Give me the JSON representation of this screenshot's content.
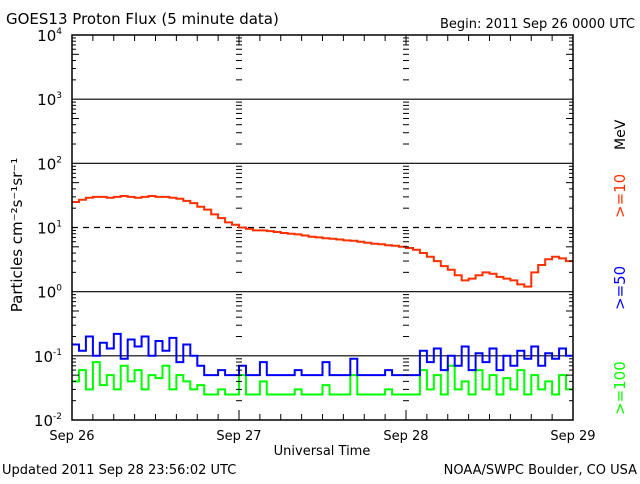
{
  "chart_data": {
    "type": "line",
    "title": "GOES13 Proton Flux (5 minute data)",
    "begin_label": "Begin: 2011 Sep 26 0000 UTC",
    "xlabel": "Universal Time",
    "ylabel": "Particles cm⁻²s⁻¹sr⁻¹",
    "y_scale": "log",
    "ylim": [
      0.01,
      10000
    ],
    "y_ticks": [
      {
        "base": "10",
        "exp": "4",
        "value": 10000
      },
      {
        "base": "10",
        "exp": "3",
        "value": 1000
      },
      {
        "base": "10",
        "exp": "2",
        "value": 100
      },
      {
        "base": "10",
        "exp": "1",
        "value": 10
      },
      {
        "base": "10",
        "exp": "0",
        "value": 1
      },
      {
        "base": "10",
        "exp": "-1",
        "value": 0.1
      },
      {
        "base": "10",
        "exp": "-2",
        "value": 0.01
      }
    ],
    "x_unit": "hours since 2011 Sep 26 0000 UTC",
    "xlim": [
      0,
      72
    ],
    "x_ticks": [
      {
        "label": "Sep 26",
        "value": 0
      },
      {
        "label": "Sep 27",
        "value": 24
      },
      {
        "label": "Sep 28",
        "value": 48
      },
      {
        "label": "Sep 29",
        "value": 72
      }
    ],
    "threshold_line": {
      "value": 10,
      "style": "dashed"
    },
    "series": [
      {
        "name": ">=10",
        "unit": "MeV",
        "color": "#ff3000",
        "values": [
          25,
          27,
          29,
          30,
          30,
          29,
          30,
          31,
          30,
          29,
          30,
          31,
          30,
          30,
          29,
          28,
          26,
          24,
          21,
          19,
          16,
          14,
          12,
          11,
          10,
          9.5,
          9,
          9,
          8.8,
          8.5,
          8.2,
          8,
          7.8,
          7.5,
          7.2,
          7,
          6.8,
          6.7,
          6.5,
          6.3,
          6.2,
          6,
          5.8,
          5.6,
          5.5,
          5.3,
          5.2,
          5,
          4.8,
          4.5,
          4,
          3.5,
          3,
          2.5,
          2.2,
          1.8,
          1.5,
          1.6,
          1.8,
          2,
          1.9,
          1.7,
          1.6,
          1.5,
          1.3,
          1.2,
          2,
          2.6,
          3.2,
          3.5,
          3.3,
          3
        ]
      },
      {
        "name": ">=50",
        "color": "#0000ff",
        "values": [
          0.15,
          0.12,
          0.2,
          0.1,
          0.16,
          0.13,
          0.22,
          0.09,
          0.18,
          0.14,
          0.2,
          0.1,
          0.17,
          0.12,
          0.19,
          0.08,
          0.15,
          0.1,
          0.07,
          0.05,
          0.05,
          0.06,
          0.05,
          0.05,
          0.07,
          0.05,
          0.05,
          0.08,
          0.05,
          0.05,
          0.05,
          0.05,
          0.06,
          0.05,
          0.05,
          0.05,
          0.08,
          0.05,
          0.05,
          0.05,
          0.09,
          0.05,
          0.05,
          0.05,
          0.05,
          0.06,
          0.05,
          0.05,
          0.05,
          0.05,
          0.12,
          0.08,
          0.13,
          0.06,
          0.1,
          0.07,
          0.14,
          0.06,
          0.11,
          0.08,
          0.13,
          0.06,
          0.1,
          0.07,
          0.12,
          0.09,
          0.14,
          0.07,
          0.11,
          0.09,
          0.13,
          0.1
        ]
      },
      {
        "name": ">=100",
        "color": "#00ff00",
        "values": [
          0.04,
          0.06,
          0.03,
          0.08,
          0.035,
          0.05,
          0.03,
          0.07,
          0.04,
          0.06,
          0.03,
          0.05,
          0.045,
          0.07,
          0.03,
          0.05,
          0.04,
          0.03,
          0.035,
          0.025,
          0.025,
          0.03,
          0.025,
          0.025,
          0.05,
          0.025,
          0.025,
          0.04,
          0.025,
          0.025,
          0.025,
          0.025,
          0.03,
          0.025,
          0.025,
          0.025,
          0.035,
          0.025,
          0.025,
          0.025,
          0.05,
          0.025,
          0.025,
          0.025,
          0.025,
          0.03,
          0.025,
          0.025,
          0.025,
          0.025,
          0.06,
          0.03,
          0.05,
          0.025,
          0.07,
          0.03,
          0.04,
          0.025,
          0.06,
          0.03,
          0.05,
          0.025,
          0.045,
          0.03,
          0.06,
          0.025,
          0.05,
          0.03,
          0.04,
          0.025,
          0.05,
          0.03
        ]
      }
    ],
    "legend_placement": "right"
  },
  "footer": {
    "updated": "Updated 2011 Sep 28 23:56:02 UTC",
    "credit": "NOAA/SWPC Boulder, CO USA"
  }
}
